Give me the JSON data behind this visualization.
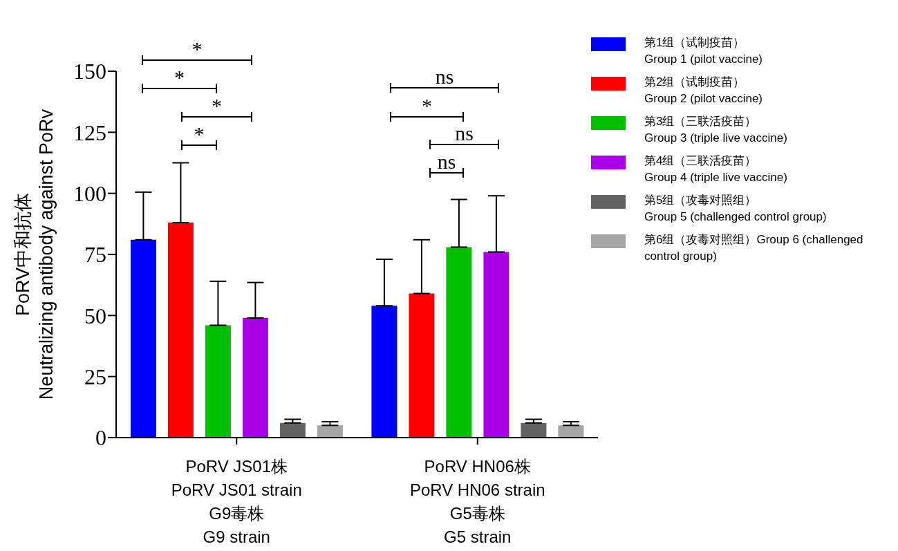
{
  "chart_data": {
    "type": "bar",
    "categories": [
      "PoRV JS01株\nPoRV JS01 strain\nG9毒株\nG9 strain",
      "PoRV HN06株\nPoRV HN06 strain\nG5毒株\nG5 strain"
    ],
    "ylabel": "PoRV中和抗体\nNeutralizing antibody against PoRv",
    "ylim": [
      0,
      150
    ],
    "yticks": [
      0,
      25,
      50,
      75,
      100,
      125,
      150
    ],
    "series": [
      {
        "name": "第1组（试制疫苗）\nGroup 1 (pilot vaccine)",
        "color": "#0000ff",
        "values": [
          81,
          54
        ],
        "errors": [
          [
            81,
            100.5
          ],
          [
            54,
            73
          ]
        ]
      },
      {
        "name": "第2组（试制疫苗）\nGroup 2 (pilot vaccine)",
        "color": "#ff0000",
        "values": [
          88,
          59
        ],
        "errors": [
          [
            88,
            112.5
          ],
          [
            59,
            81
          ]
        ]
      },
      {
        "name": "第3组（三联活疫苗）\nGroup 3 (triple live vaccine)",
        "color": "#00c000",
        "values": [
          46,
          78
        ],
        "errors": [
          [
            46,
            64
          ],
          [
            78,
            97.5
          ]
        ]
      },
      {
        "name": "第4组（三联活疫苗）\nGroup 4 (triple live vaccine)",
        "color": "#a800e8",
        "values": [
          49,
          76
        ],
        "errors": [
          [
            49,
            63.5
          ],
          [
            76,
            99
          ]
        ]
      },
      {
        "name": "第5组（攻毒对照组）\nGroup 5 (challenged control group)",
        "color": "#636363",
        "values": [
          6,
          6
        ],
        "errors": [
          [
            6,
            7.5
          ],
          [
            6,
            7.5
          ]
        ]
      },
      {
        "name": "第6组（攻毒对照组）Group 6 (challenged control group)",
        "color": "#a6a6a6",
        "values": [
          5,
          5
        ],
        "errors": [
          [
            5,
            6.5
          ],
          [
            5,
            6.5
          ]
        ]
      }
    ],
    "annotations": [
      "*",
      "*",
      "*",
      "*",
      "ns",
      "*",
      "ns",
      "ns"
    ],
    "legend": "right"
  }
}
